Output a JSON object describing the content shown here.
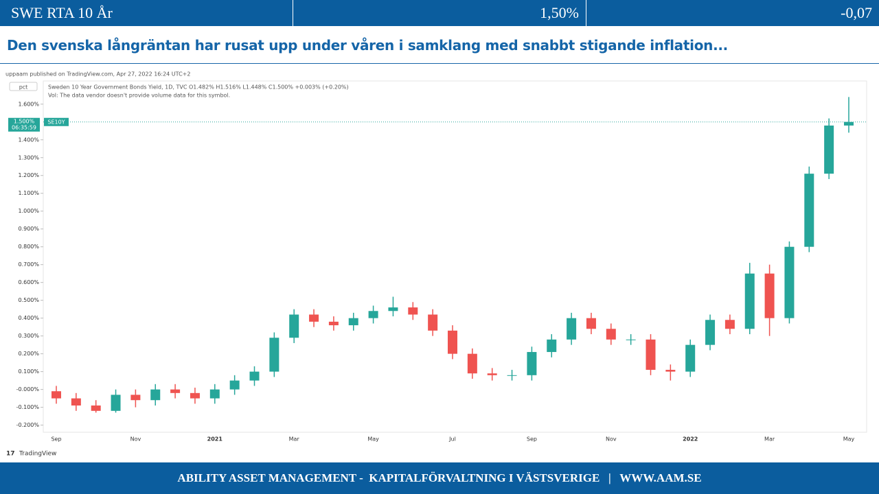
{
  "header": {
    "title": "SWE RTA 10 År",
    "value": "1,50%",
    "change": "-0,07"
  },
  "heading": "Den svenska långräntan har rusat upp under våren i samklang med snabbt stigande inflation...",
  "chart_data": {
    "type": "candlestick",
    "published": "uppaam published on TradingView.com, Apr 27, 2022 16:24 UTC+2",
    "unit": "pct",
    "legend_text": "Sweden 10 Year Government Bonds Yield, 1D, TVC  O1.482%  H1.516%  L1.448%  C1.500%  +0.003% (+0.20%)",
    "vol_text": "Vol: The data vendor doesn't provide volume data for this symbol.",
    "symbol": "SE10Y",
    "countdown": "06:35:59",
    "last": {
      "value": 1.5,
      "label": "1.500%"
    },
    "brand": "TradingView",
    "up_color": "#26a69a",
    "down_color": "#ef5350",
    "categories": [
      "Sep",
      null,
      null,
      null,
      "Nov",
      null,
      null,
      null,
      "2021",
      null,
      null,
      null,
      "Mar",
      null,
      null,
      null,
      "May",
      null,
      null,
      null,
      "Jul",
      null,
      null,
      null,
      "Sep",
      null,
      null,
      null,
      "Nov",
      null,
      null,
      null,
      "2022",
      null,
      null,
      null,
      "Mar",
      null,
      null,
      null,
      "May"
    ],
    "open": [
      -0.01,
      -0.05,
      -0.09,
      -0.12,
      -0.03,
      -0.06,
      0.0,
      -0.02,
      -0.05,
      0.0,
      0.05,
      0.1,
      0.29,
      0.42,
      0.38,
      0.36,
      0.4,
      0.44,
      0.46,
      0.42,
      0.33,
      0.2,
      0.09,
      0.08,
      0.08,
      0.21,
      0.28,
      0.4,
      0.34,
      0.28,
      0.28,
      0.11,
      0.1,
      0.25,
      0.39,
      0.34,
      0.65,
      0.4,
      0.8,
      1.21,
      1.48
    ],
    "high": [
      0.02,
      -0.02,
      -0.06,
      0.0,
      0.0,
      0.03,
      0.03,
      0.01,
      0.03,
      0.08,
      0.13,
      0.32,
      0.45,
      0.45,
      0.41,
      0.43,
      0.47,
      0.52,
      0.49,
      0.45,
      0.36,
      0.23,
      0.12,
      0.11,
      0.24,
      0.31,
      0.43,
      0.43,
      0.37,
      0.31,
      0.31,
      0.14,
      0.28,
      0.42,
      0.42,
      0.71,
      0.7,
      0.83,
      1.25,
      1.52,
      1.64
    ],
    "low": [
      -0.08,
      -0.12,
      -0.13,
      -0.13,
      -0.1,
      -0.09,
      -0.05,
      -0.08,
      -0.08,
      -0.03,
      0.02,
      0.07,
      0.26,
      0.35,
      0.33,
      0.33,
      0.37,
      0.41,
      0.39,
      0.3,
      0.17,
      0.06,
      0.05,
      0.05,
      0.05,
      0.18,
      0.25,
      0.31,
      0.25,
      0.25,
      0.08,
      0.05,
      0.07,
      0.22,
      0.31,
      0.31,
      0.3,
      0.37,
      0.77,
      1.18,
      1.44
    ],
    "close": [
      -0.05,
      -0.09,
      -0.12,
      -0.03,
      -0.06,
      0.0,
      -0.02,
      -0.05,
      0.0,
      0.05,
      0.1,
      0.29,
      0.42,
      0.38,
      0.36,
      0.4,
      0.44,
      0.46,
      0.42,
      0.33,
      0.2,
      0.09,
      0.08,
      0.08,
      0.21,
      0.28,
      0.4,
      0.34,
      0.28,
      0.28,
      0.11,
      0.1,
      0.25,
      0.39,
      0.34,
      0.65,
      0.4,
      0.8,
      1.21,
      1.48,
      1.5
    ],
    "ylim": [
      -0.24,
      1.73
    ],
    "yticks": [
      {
        "value": -0.2,
        "label": "-0.200%"
      },
      {
        "value": -0.1,
        "label": "-0.100%"
      },
      {
        "value": 0,
        "label": "-0.000%"
      },
      {
        "value": 0.1,
        "label": "0.100%"
      },
      {
        "value": 0.2,
        "label": "0.200%"
      },
      {
        "value": 0.3,
        "label": "0.300%"
      },
      {
        "value": 0.4,
        "label": "0.400%"
      },
      {
        "value": 0.5,
        "label": "0.500%"
      },
      {
        "value": 0.6,
        "label": "0.600%"
      },
      {
        "value": 0.7,
        "label": "0.700%"
      },
      {
        "value": 0.8,
        "label": "0.800%"
      },
      {
        "value": 0.9,
        "label": "0.900%"
      },
      {
        "value": 1.0,
        "label": "1.000%"
      },
      {
        "value": 1.1,
        "label": "1.100%"
      },
      {
        "value": 1.2,
        "label": "1.200%"
      },
      {
        "value": 1.3,
        "label": "1.300%"
      },
      {
        "value": 1.4,
        "label": "1.400%"
      },
      {
        "value": 1.6,
        "label": "1.600%"
      }
    ],
    "grid": false
  },
  "footer": "ABILITY ASSET MANAGEMENT -  KAPITALFÖRVALTNING I VÄSTSVERIGE   |   WWW.AAM.SE"
}
